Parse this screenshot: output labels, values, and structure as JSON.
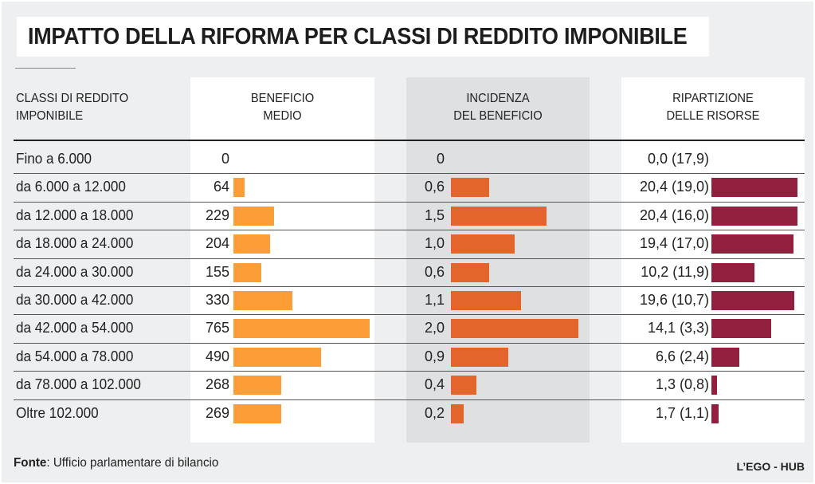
{
  "chart_data": {
    "type": "table",
    "title": "IMPATTO DELLA RIFORMA PER CLASSI DI REDDITO IMPONIBILE",
    "columns": [
      "CLASSI DI REDDITO IMPONIBILE",
      "BENEFICIO MEDIO",
      "INCIDENZA DEL BENEFICIO",
      "RIPARTIZIONE DELLE RISORSE"
    ],
    "headers": {
      "classes": [
        "CLASSI DI REDDITO",
        "IMPONIBILE"
      ],
      "beneficio": [
        "BENEFICIO",
        "MEDIO"
      ],
      "incidenza": [
        "INCIDENZA",
        "DEL BENEFICIO"
      ],
      "ripartizione": [
        "RIPARTIZIONE",
        "DELLE RISORSE"
      ]
    },
    "categories": [
      "Fino a 6.000",
      "da 6.000 a 12.000",
      "da 12.000 a 18.000",
      "da 18.000 a 24.000",
      "da 24.000 a 30.000",
      "da 30.000 a 42.000",
      "da 42.000 a 54.000",
      "da 54.000 a 78.000",
      "da 78.000 a 102.000",
      "Oltre 102.000"
    ],
    "series": [
      {
        "name": "BENEFICIO MEDIO",
        "color": "#fd9d35",
        "values": [
          0,
          64,
          229,
          204,
          155,
          330,
          765,
          490,
          268,
          269
        ],
        "labels": [
          "0",
          "64",
          "229",
          "204",
          "155",
          "330",
          "765",
          "490",
          "268",
          "269"
        ]
      },
      {
        "name": "INCIDENZA DEL BENEFICIO",
        "color": "#e4652b",
        "values": [
          0,
          0.6,
          1.5,
          1.0,
          0.6,
          1.1,
          2.0,
          0.9,
          0.4,
          0.2
        ],
        "labels": [
          "0",
          "0,6",
          "1,5",
          "1,0",
          "0,6",
          "1,1",
          "2,0",
          "0,9",
          "0,4",
          "0,2"
        ]
      },
      {
        "name": "RIPARTIZIONE DELLE RISORSE",
        "color": "#931f3e",
        "values": [
          0.0,
          20.4,
          20.4,
          19.4,
          10.2,
          19.6,
          14.1,
          6.6,
          1.3,
          1.7
        ],
        "secondary": [
          17.9,
          19.0,
          16.0,
          17.0,
          11.9,
          10.7,
          3.3,
          2.4,
          0.8,
          1.1
        ],
        "labels": [
          "0,0 (17,9)",
          "20,4 (19,0)",
          "20,4 (16,0)",
          "19,4 (17,0)",
          "10,2 (11,9)",
          "19,6 (10,7)",
          "14,1 (3,3)",
          "6,6 (2,4)",
          "1,3 (0,8)",
          "1,7 (1,1)"
        ]
      }
    ],
    "scales": {
      "beneficio_max": 765,
      "incidenza_max": 2.0,
      "ripartizione_max": 20.4
    }
  },
  "footer": {
    "source_label": "Fonte",
    "source_text": ": Ufficio parlamentare di bilancio",
    "credit": "L’EGO - HUB"
  }
}
